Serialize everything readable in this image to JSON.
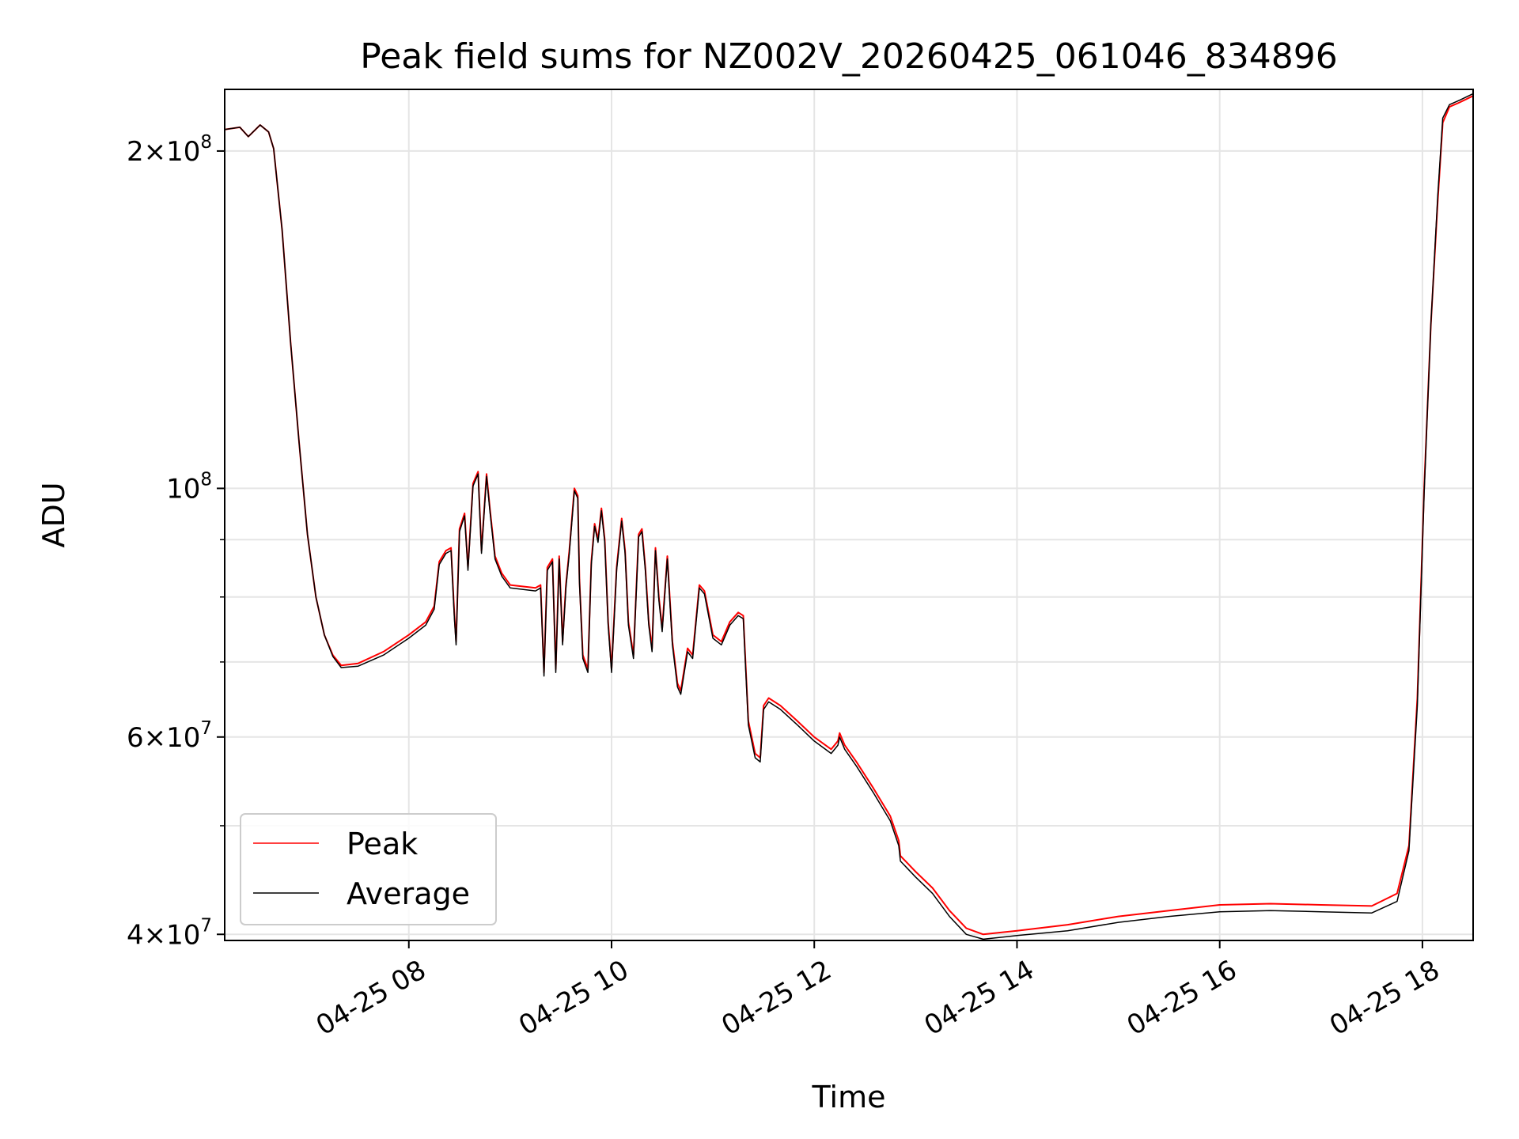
{
  "chart_data": {
    "type": "line",
    "title": "Peak field sums for NZ002V_20260425_061046_834896",
    "xlabel": "Time",
    "ylabel": "ADU",
    "yscale": "log",
    "xlim": [
      "2026-04-25 06:11",
      "2026-04-25 18:30"
    ],
    "ylim": [
      39500000,
      227000000
    ],
    "grid": true,
    "legend_position": "lower-left",
    "x_ticks": [
      {
        "value": "2026-04-25 08:00",
        "label": "04-25 08"
      },
      {
        "value": "2026-04-25 10:00",
        "label": "04-25 10"
      },
      {
        "value": "2026-04-25 12:00",
        "label": "04-25 12"
      },
      {
        "value": "2026-04-25 14:00",
        "label": "04-25 14"
      },
      {
        "value": "2026-04-25 16:00",
        "label": "04-25 16"
      },
      {
        "value": "2026-04-25 18:00",
        "label": "04-25 18"
      }
    ],
    "y_ticks_major": [
      {
        "value": 40000000,
        "mantissa": "4",
        "exponent": "7"
      },
      {
        "value": 60000000,
        "mantissa": "6",
        "exponent": "7"
      },
      {
        "value": 100000000,
        "mantissa": "",
        "exponent": "8"
      },
      {
        "value": 200000000,
        "mantissa": "2",
        "exponent": "8"
      }
    ],
    "y_ticks_minor": [
      50000000,
      70000000,
      80000000,
      90000000
    ],
    "series": [
      {
        "name": "Peak",
        "color": "#ff0000",
        "points": [
          [
            "06:11",
            209000000
          ],
          [
            "06:20",
            210000000
          ],
          [
            "06:25",
            206000000
          ],
          [
            "06:32",
            211000000
          ],
          [
            "06:37",
            208000000
          ],
          [
            "06:40",
            201000000
          ],
          [
            "06:45",
            170000000
          ],
          [
            "06:50",
            135000000
          ],
          [
            "06:55",
            110000000
          ],
          [
            "07:00",
            91000000
          ],
          [
            "07:05",
            80000000
          ],
          [
            "07:10",
            74000000
          ],
          [
            "07:15",
            71000000
          ],
          [
            "07:20",
            69500000
          ],
          [
            "07:30",
            69800000
          ],
          [
            "07:45",
            71500000
          ],
          [
            "08:00",
            74000000
          ],
          [
            "08:10",
            76000000
          ],
          [
            "08:15",
            78500000
          ],
          [
            "08:18",
            86000000
          ],
          [
            "08:22",
            88000000
          ],
          [
            "08:25",
            88500000
          ],
          [
            "08:27",
            77000000
          ],
          [
            "08:28",
            73000000
          ],
          [
            "08:30",
            92000000
          ],
          [
            "08:33",
            95000000
          ],
          [
            "08:35",
            85000000
          ],
          [
            "08:38",
            101000000
          ],
          [
            "08:41",
            103500000
          ],
          [
            "08:43",
            88000000
          ],
          [
            "08:46",
            103000000
          ],
          [
            "08:48",
            96000000
          ],
          [
            "08:51",
            87000000
          ],
          [
            "08:55",
            84000000
          ],
          [
            "09:00",
            82000000
          ],
          [
            "09:15",
            81500000
          ],
          [
            "09:18",
            82000000
          ],
          [
            "09:20",
            68500000
          ],
          [
            "09:22",
            85000000
          ],
          [
            "09:25",
            86500000
          ],
          [
            "09:27",
            69000000
          ],
          [
            "09:29",
            87000000
          ],
          [
            "09:30",
            80000000
          ],
          [
            "09:31",
            73000000
          ],
          [
            "09:33",
            82000000
          ],
          [
            "09:35",
            88000000
          ],
          [
            "09:38",
            100000000
          ],
          [
            "09:40",
            98500000
          ],
          [
            "09:41",
            83000000
          ],
          [
            "09:43",
            71000000
          ],
          [
            "09:46",
            69000000
          ],
          [
            "09:48",
            86000000
          ],
          [
            "09:50",
            93000000
          ],
          [
            "09:52",
            90000000
          ],
          [
            "09:54",
            96000000
          ],
          [
            "09:56",
            90000000
          ],
          [
            "09:58",
            76000000
          ],
          [
            "10:00",
            69000000
          ],
          [
            "10:03",
            85000000
          ],
          [
            "10:06",
            94000000
          ],
          [
            "10:08",
            88000000
          ],
          [
            "10:10",
            76000000
          ],
          [
            "10:13",
            71000000
          ],
          [
            "10:16",
            91000000
          ],
          [
            "10:18",
            92000000
          ],
          [
            "10:20",
            85000000
          ],
          [
            "10:22",
            76000000
          ],
          [
            "10:24",
            72000000
          ],
          [
            "10:26",
            88500000
          ],
          [
            "10:28",
            80000000
          ],
          [
            "10:30",
            75000000
          ],
          [
            "10:33",
            87000000
          ],
          [
            "10:36",
            73000000
          ],
          [
            "10:39",
            67000000
          ],
          [
            "10:41",
            66000000
          ],
          [
            "10:45",
            72000000
          ],
          [
            "10:48",
            71000000
          ],
          [
            "10:52",
            82000000
          ],
          [
            "10:55",
            81000000
          ],
          [
            "11:00",
            74000000
          ],
          [
            "11:05",
            73000000
          ],
          [
            "11:10",
            76000000
          ],
          [
            "11:15",
            77500000
          ],
          [
            "11:18",
            77000000
          ],
          [
            "11:21",
            62000000
          ],
          [
            "11:25",
            58000000
          ],
          [
            "11:28",
            57500000
          ],
          [
            "11:30",
            64000000
          ],
          [
            "11:33",
            65000000
          ],
          [
            "11:40",
            64000000
          ],
          [
            "11:50",
            62000000
          ],
          [
            "12:00",
            60000000
          ],
          [
            "12:10",
            58500000
          ],
          [
            "12:14",
            59500000
          ],
          [
            "12:15",
            60500000
          ],
          [
            "12:18",
            59000000
          ],
          [
            "12:25",
            57000000
          ],
          [
            "12:35",
            54000000
          ],
          [
            "12:45",
            51000000
          ],
          [
            "12:50",
            48500000
          ],
          [
            "12:51",
            47000000
          ],
          [
            "13:00",
            45500000
          ],
          [
            "13:10",
            44000000
          ],
          [
            "13:20",
            42000000
          ],
          [
            "13:30",
            40500000
          ],
          [
            "13:40",
            40000000
          ],
          [
            "14:00",
            40300000
          ],
          [
            "14:30",
            40800000
          ],
          [
            "15:00",
            41500000
          ],
          [
            "15:30",
            42000000
          ],
          [
            "16:00",
            42500000
          ],
          [
            "16:30",
            42600000
          ],
          [
            "17:00",
            42500000
          ],
          [
            "17:30",
            42400000
          ],
          [
            "17:45",
            43500000
          ],
          [
            "17:52",
            48000000
          ],
          [
            "17:57",
            65000000
          ],
          [
            "18:01",
            100000000
          ],
          [
            "18:05",
            140000000
          ],
          [
            "18:09",
            180000000
          ],
          [
            "18:12",
            212000000
          ],
          [
            "18:16",
            219000000
          ],
          [
            "18:22",
            221000000
          ],
          [
            "18:30",
            224000000
          ]
        ]
      },
      {
        "name": "Average",
        "color": "#000000",
        "points": [
          [
            "06:11",
            209000000
          ],
          [
            "06:20",
            210000000
          ],
          [
            "06:25",
            206000000
          ],
          [
            "06:32",
            211000000
          ],
          [
            "06:37",
            208000000
          ],
          [
            "06:40",
            201000000
          ],
          [
            "06:45",
            170000000
          ],
          [
            "06:50",
            135000000
          ],
          [
            "06:55",
            110000000
          ],
          [
            "07:00",
            91000000
          ],
          [
            "07:05",
            80000000
          ],
          [
            "07:10",
            74000000
          ],
          [
            "07:15",
            70800000
          ],
          [
            "07:20",
            69200000
          ],
          [
            "07:30",
            69400000
          ],
          [
            "07:45",
            71000000
          ],
          [
            "08:00",
            73500000
          ],
          [
            "08:10",
            75500000
          ],
          [
            "08:15",
            78000000
          ],
          [
            "08:18",
            85500000
          ],
          [
            "08:22",
            87500000
          ],
          [
            "08:25",
            88000000
          ],
          [
            "08:27",
            76500000
          ],
          [
            "08:28",
            72500000
          ],
          [
            "08:30",
            91500000
          ],
          [
            "08:33",
            94500000
          ],
          [
            "08:35",
            84500000
          ],
          [
            "08:38",
            100500000
          ],
          [
            "08:41",
            103000000
          ],
          [
            "08:43",
            87500000
          ],
          [
            "08:46",
            102500000
          ],
          [
            "08:48",
            95500000
          ],
          [
            "08:51",
            86500000
          ],
          [
            "08:55",
            83500000
          ],
          [
            "09:00",
            81500000
          ],
          [
            "09:15",
            81000000
          ],
          [
            "09:18",
            81500000
          ],
          [
            "09:20",
            68000000
          ],
          [
            "09:22",
            84500000
          ],
          [
            "09:25",
            86000000
          ],
          [
            "09:27",
            68500000
          ],
          [
            "09:29",
            86500000
          ],
          [
            "09:30",
            79500000
          ],
          [
            "09:31",
            72500000
          ],
          [
            "09:33",
            81500000
          ],
          [
            "09:35",
            87500000
          ],
          [
            "09:38",
            99500000
          ],
          [
            "09:40",
            98000000
          ],
          [
            "09:41",
            82500000
          ],
          [
            "09:43",
            70500000
          ],
          [
            "09:46",
            68500000
          ],
          [
            "09:48",
            85500000
          ],
          [
            "09:50",
            92500000
          ],
          [
            "09:52",
            89500000
          ],
          [
            "09:54",
            95500000
          ],
          [
            "09:56",
            89500000
          ],
          [
            "09:58",
            75500000
          ],
          [
            "10:00",
            68500000
          ],
          [
            "10:03",
            84500000
          ],
          [
            "10:06",
            93500000
          ],
          [
            "10:08",
            87500000
          ],
          [
            "10:10",
            75500000
          ],
          [
            "10:13",
            70500000
          ],
          [
            "10:16",
            90500000
          ],
          [
            "10:18",
            91500000
          ],
          [
            "10:20",
            84500000
          ],
          [
            "10:22",
            75500000
          ],
          [
            "10:24",
            71500000
          ],
          [
            "10:26",
            88000000
          ],
          [
            "10:28",
            79500000
          ],
          [
            "10:30",
            74500000
          ],
          [
            "10:33",
            86500000
          ],
          [
            "10:36",
            72500000
          ],
          [
            "10:39",
            66500000
          ],
          [
            "10:41",
            65500000
          ],
          [
            "10:45",
            71500000
          ],
          [
            "10:48",
            70500000
          ],
          [
            "10:52",
            81500000
          ],
          [
            "10:55",
            80500000
          ],
          [
            "11:00",
            73500000
          ],
          [
            "11:05",
            72500000
          ],
          [
            "11:10",
            75500000
          ],
          [
            "11:15",
            77000000
          ],
          [
            "11:18",
            76500000
          ],
          [
            "11:21",
            61500000
          ],
          [
            "11:25",
            57500000
          ],
          [
            "11:28",
            57000000
          ],
          [
            "11:30",
            63500000
          ],
          [
            "11:33",
            64500000
          ],
          [
            "11:40",
            63500000
          ],
          [
            "11:50",
            61500000
          ],
          [
            "12:00",
            59500000
          ],
          [
            "12:10",
            58000000
          ],
          [
            "12:14",
            59000000
          ],
          [
            "12:15",
            60000000
          ],
          [
            "12:18",
            58500000
          ],
          [
            "12:25",
            56500000
          ],
          [
            "12:35",
            53500000
          ],
          [
            "12:45",
            50500000
          ],
          [
            "12:50",
            48000000
          ],
          [
            "12:51",
            46500000
          ],
          [
            "13:00",
            45000000
          ],
          [
            "13:10",
            43500000
          ],
          [
            "13:20",
            41500000
          ],
          [
            "13:30",
            40000000
          ],
          [
            "13:40",
            39600000
          ],
          [
            "14:00",
            39900000
          ],
          [
            "14:30",
            40300000
          ],
          [
            "15:00",
            41000000
          ],
          [
            "15:30",
            41500000
          ],
          [
            "16:00",
            41900000
          ],
          [
            "16:30",
            42000000
          ],
          [
            "17:00",
            41900000
          ],
          [
            "17:30",
            41800000
          ],
          [
            "17:45",
            42800000
          ],
          [
            "17:52",
            47500000
          ],
          [
            "17:57",
            64000000
          ],
          [
            "18:01",
            99000000
          ],
          [
            "18:05",
            140000000
          ],
          [
            "18:09",
            182000000
          ],
          [
            "18:12",
            214000000
          ],
          [
            "18:16",
            220000000
          ],
          [
            "18:22",
            222000000
          ],
          [
            "18:30",
            225000000
          ]
        ]
      }
    ]
  }
}
